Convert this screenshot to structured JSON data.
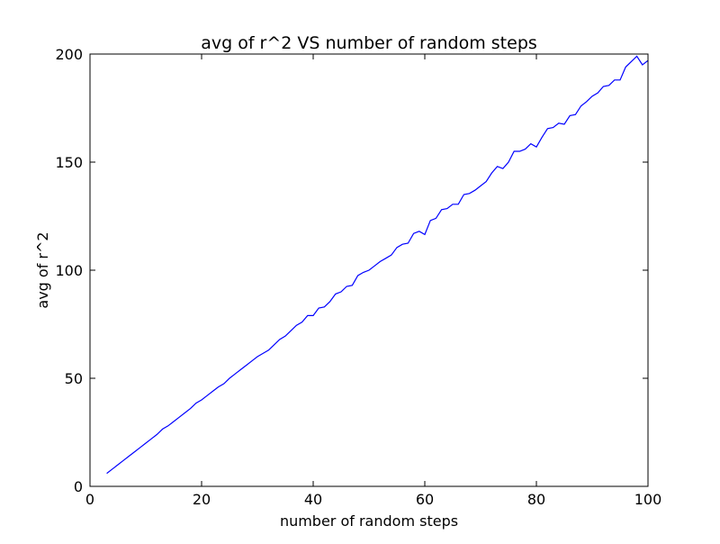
{
  "chart_data": {
    "type": "line",
    "title": "avg of r^2 VS number of random steps",
    "xlabel": "number of random steps",
    "ylabel": "avg of r^2",
    "x": [
      3,
      4,
      5,
      6,
      7,
      8,
      9,
      10,
      11,
      12,
      13,
      14,
      15,
      16,
      17,
      18,
      19,
      20,
      21,
      22,
      23,
      24,
      25,
      26,
      27,
      28,
      29,
      30,
      31,
      32,
      33,
      34,
      35,
      36,
      37,
      38,
      39,
      40,
      41,
      42,
      43,
      44,
      45,
      46,
      47,
      48,
      49,
      50,
      51,
      52,
      53,
      54,
      55,
      56,
      57,
      58,
      59,
      60,
      61,
      62,
      63,
      64,
      65,
      66,
      67,
      68,
      69,
      70,
      71,
      72,
      73,
      74,
      75,
      76,
      77,
      78,
      79,
      80,
      81,
      82,
      83,
      84,
      85,
      86,
      87,
      88,
      89,
      90,
      91,
      92,
      93,
      94,
      95,
      96,
      97,
      98,
      99,
      100
    ],
    "series": [
      {
        "color": "#0000ff",
        "values": [
          6,
          8,
          10,
          12,
          14,
          16,
          18,
          20,
          22,
          24,
          26.5,
          28,
          30,
          32,
          34,
          36,
          38.5,
          40,
          42,
          44,
          46,
          47.5,
          50,
          52,
          54,
          56,
          58,
          60,
          61.5,
          63,
          65.5,
          68,
          69.5,
          72,
          74.5,
          76,
          79,
          79,
          82.5,
          83,
          85.5,
          89,
          90,
          92.5,
          93,
          97.5,
          99,
          100,
          102,
          104,
          105.5,
          107,
          110.5,
          112,
          112.5,
          117,
          118,
          116.5,
          123,
          124,
          128,
          128.5,
          130.5,
          130.5,
          135,
          135.5,
          137,
          139,
          141,
          145,
          148,
          147,
          150,
          155,
          155,
          156,
          158.5,
          157,
          161.5,
          165.5,
          166,
          168,
          167.5,
          171.5,
          172,
          176,
          178,
          180.5,
          182,
          185,
          185.5,
          188,
          188,
          194,
          196.5,
          199,
          195,
          197
        ]
      }
    ],
    "xlim": [
      0,
      100
    ],
    "xticks": [
      0,
      20,
      40,
      60,
      80,
      100
    ],
    "ylim": [
      0,
      200
    ],
    "yticks": [
      0,
      50,
      100,
      150,
      200
    ]
  }
}
